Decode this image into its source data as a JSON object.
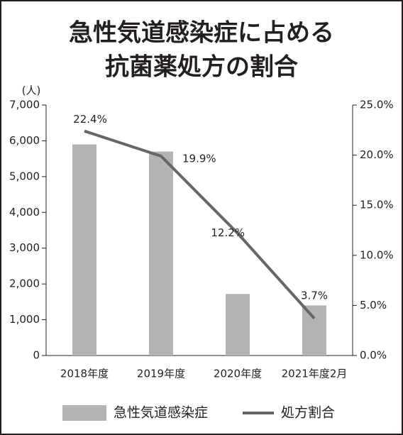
{
  "chart_data": {
    "type": "bar",
    "title": [
      "急性気道感染症に占める",
      "抗菌薬処方の割合"
    ],
    "y_label": "(人)",
    "categories": [
      "2018年度",
      "2019年度",
      "2020年度",
      "2021年度2月"
    ],
    "series": [
      {
        "name": "急性気道感染症",
        "type": "bar",
        "color": "#b3b3b3",
        "values": [
          5900,
          5700,
          1720,
          1400
        ]
      },
      {
        "name": "処方割合",
        "type": "line",
        "axis": "y2",
        "color": "#666666",
        "values": [
          22.4,
          19.9,
          12.2,
          3.7
        ],
        "value_labels": [
          "22.4%",
          "19.9%",
          "12.2%",
          "3.7%"
        ]
      }
    ],
    "ylim": [
      0,
      7000
    ],
    "yticks": [
      0,
      {
        "value": 1000,
        "label": "1,000"
      },
      {
        "value": 2000,
        "label": "2,000"
      },
      {
        "value": 3000,
        "label": "3,000"
      },
      {
        "value": 4000,
        "label": "4,000"
      },
      {
        "value": 5000,
        "label": "5,000"
      },
      {
        "value": 6000,
        "label": "6,000"
      },
      {
        "value": 7000,
        "label": "7,000"
      }
    ],
    "y2lim": [
      0,
      25
    ],
    "y2ticks": [
      {
        "value": 0,
        "label": "0.0%"
      },
      {
        "value": 5,
        "label": "5.0%"
      },
      {
        "value": 10,
        "label": "10.0%"
      },
      {
        "value": 15,
        "label": "15.0%"
      },
      {
        "value": 20,
        "label": "20.0%"
      },
      {
        "value": 25,
        "label": "25.0%"
      }
    ]
  }
}
